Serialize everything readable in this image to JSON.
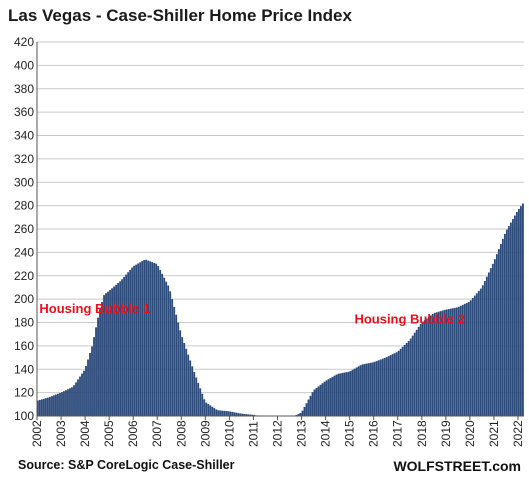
{
  "chart_data": {
    "type": "bar",
    "title": "Las Vegas - Case-Shiller Home Price Index",
    "source": "Source: S&P CoreLogic Case-Shiller",
    "brand": "WOLFSTREET.com",
    "ylim": [
      100,
      420
    ],
    "yticks": [
      100,
      120,
      140,
      160,
      180,
      200,
      220,
      240,
      260,
      280,
      300,
      320,
      340,
      360,
      380,
      400,
      420
    ],
    "xlim": [
      2002,
      2022.25
    ],
    "xticks": [
      "2002",
      "2003",
      "2004",
      "2005",
      "2006",
      "2007",
      "2008",
      "2009",
      "2010",
      "2011",
      "2012",
      "2013",
      "2014",
      "2015",
      "2016",
      "2017",
      "2018",
      "2019",
      "2020",
      "2021",
      "2022"
    ],
    "grid": true,
    "bar_color": "#2c4a7a",
    "annotations": [
      {
        "text": "Housing Bubble 1",
        "x": 2002.1,
        "y": 188
      },
      {
        "text": "Housing Bubble 2",
        "x": 2015.2,
        "y": 179
      }
    ],
    "anchors": [
      [
        2002.0,
        113
      ],
      [
        2002.5,
        116
      ],
      [
        2003.0,
        120
      ],
      [
        2003.5,
        125
      ],
      [
        2004.0,
        140
      ],
      [
        2004.3,
        160
      ],
      [
        2004.6,
        190
      ],
      [
        2004.8,
        204
      ],
      [
        2005.0,
        207
      ],
      [
        2005.5,
        216
      ],
      [
        2006.0,
        228
      ],
      [
        2006.5,
        234
      ],
      [
        2007.0,
        230
      ],
      [
        2007.5,
        210
      ],
      [
        2008.0,
        170
      ],
      [
        2008.5,
        140
      ],
      [
        2009.0,
        112
      ],
      [
        2009.5,
        105
      ],
      [
        2010.0,
        104
      ],
      [
        2010.5,
        102
      ],
      [
        2011.0,
        101
      ],
      [
        2011.5,
        99
      ],
      [
        2012.0,
        97
      ],
      [
        2012.5,
        98
      ],
      [
        2013.0,
        103
      ],
      [
        2013.5,
        122
      ],
      [
        2014.0,
        130
      ],
      [
        2014.5,
        136
      ],
      [
        2015.0,
        138
      ],
      [
        2015.5,
        144
      ],
      [
        2016.0,
        146
      ],
      [
        2016.5,
        150
      ],
      [
        2017.0,
        155
      ],
      [
        2017.5,
        165
      ],
      [
        2018.0,
        180
      ],
      [
        2018.5,
        188
      ],
      [
        2019.0,
        191
      ],
      [
        2019.5,
        193
      ],
      [
        2020.0,
        198
      ],
      [
        2020.5,
        210
      ],
      [
        2021.0,
        232
      ],
      [
        2021.5,
        258
      ],
      [
        2022.0,
        276
      ],
      [
        2022.25,
        283
      ]
    ]
  }
}
